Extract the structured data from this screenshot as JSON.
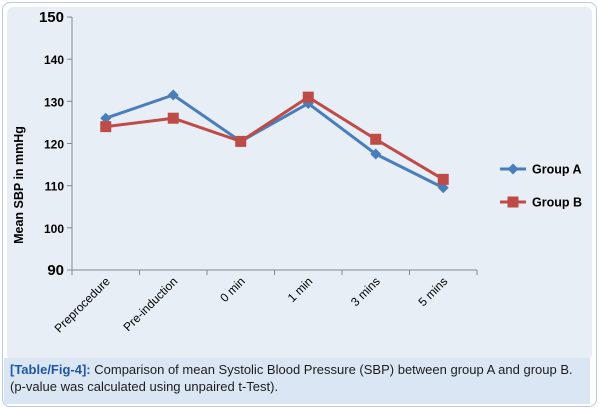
{
  "chart_data": {
    "type": "line",
    "categories": [
      "Preprocedure",
      "Pre-induction",
      "0 min",
      "1 min",
      "3 mins",
      "5 mins"
    ],
    "series": [
      {
        "name": "Group A",
        "values": [
          126,
          131.5,
          120.5,
          129.5,
          117.5,
          109.5
        ],
        "color": "#4a7ebb",
        "marker": "diamond"
      },
      {
        "name": "Group B",
        "values": [
          124,
          126,
          120.5,
          131,
          121,
          111.5
        ],
        "color": "#be4b48",
        "marker": "square"
      }
    ],
    "ylabel": "Mean SBP in mmHg",
    "yticks": [
      "90",
      "100",
      "110",
      "120",
      "130",
      "140",
      "150"
    ],
    "ylim": [
      90,
      150
    ],
    "legend": "right",
    "grid": false
  },
  "caption": {
    "tag": "[Table/Fig-4]:",
    "text": " Comparison of mean Systolic Blood Pressure (SBP) between group A and group B. (p-value was calculated using unpaired t-Test)."
  }
}
